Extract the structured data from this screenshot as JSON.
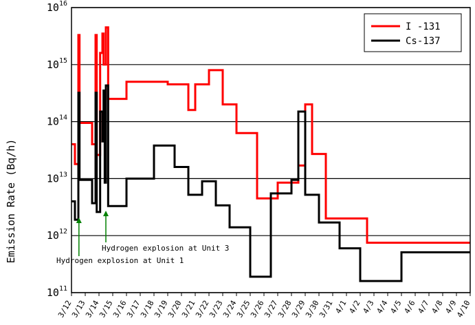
{
  "chart_data": {
    "type": "line",
    "title": "",
    "ylabel": "Emission Rate (Bq/h)",
    "xlabel": "",
    "y_scale": "log",
    "ylim": [
      100000000000.0,
      1e+16
    ],
    "y_ticks": [
      {
        "base": "10",
        "exp": "11",
        "value": 100000000000.0
      },
      {
        "base": "10",
        "exp": "12",
        "value": 1000000000000.0
      },
      {
        "base": "10",
        "exp": "13",
        "value": 10000000000000.0
      },
      {
        "base": "10",
        "exp": "14",
        "value": 100000000000000.0
      },
      {
        "base": "10",
        "exp": "15",
        "value": 1000000000000000.0
      },
      {
        "base": "10",
        "exp": "16",
        "value": 1e+16
      }
    ],
    "x_range": [
      "3/12",
      "4/10"
    ],
    "x_ticks": [
      "3/12",
      "3/13",
      "3/14",
      "3/15",
      "3/16",
      "3/17",
      "3/18",
      "3/19",
      "3/20",
      "3/21",
      "3/22",
      "3/23",
      "3/24",
      "3/25",
      "3/26",
      "3/27",
      "3/28",
      "3/29",
      "3/30",
      "3/31",
      "4/1",
      "4/2",
      "4/3",
      "4/4",
      "4/5",
      "4/6",
      "4/7",
      "4/8",
      "4/9",
      "4/10"
    ],
    "grid": "horizontal",
    "legend_position": "top-right",
    "series": [
      {
        "name": "I -131",
        "color": "#ff0000",
        "step_values": [
          {
            "x": "3/12 0:00",
            "y": 40000000000000.0
          },
          {
            "x": "3/12 6:00",
            "y": 18000000000000.0
          },
          {
            "x": "3/12 12:00",
            "y": 3300000000000000.0
          },
          {
            "x": "3/12 14:00",
            "y": 95000000000000.0
          },
          {
            "x": "3/13 12:00",
            "y": 40000000000000.0
          },
          {
            "x": "3/13 18:00",
            "y": 3300000000000000.0
          },
          {
            "x": "3/13 20:00",
            "y": 26000000000000.0
          },
          {
            "x": "3/14 2:00",
            "y": 1600000000000000.0
          },
          {
            "x": "3/14 6:00",
            "y": 3500000000000000.0
          },
          {
            "x": "3/14 8:00",
            "y": 1000000000000000.0
          },
          {
            "x": "3/14 12:00",
            "y": 4500000000000000.0
          },
          {
            "x": "3/14 16:00",
            "y": 250000000000000.0
          },
          {
            "x": "3/16 0:00",
            "y": 500000000000000.0
          },
          {
            "x": "3/19 0:00",
            "y": 450000000000000.0
          },
          {
            "x": "3/20 12:00",
            "y": 160000000000000.0
          },
          {
            "x": "3/21 0:00",
            "y": 450000000000000.0
          },
          {
            "x": "3/22 0:00",
            "y": 800000000000000.0
          },
          {
            "x": "3/23 0:00",
            "y": 200000000000000.0
          },
          {
            "x": "3/24 0:00",
            "y": 63000000000000.0
          },
          {
            "x": "3/25 12:00",
            "y": 4500000000000.0
          },
          {
            "x": "3/27 0:00",
            "y": 8500000000000.0
          },
          {
            "x": "3/28 12:00",
            "y": 17000000000000.0
          },
          {
            "x": "3/29 0:00",
            "y": 200000000000000.0
          },
          {
            "x": "3/29 12:00",
            "y": 27000000000000.0
          },
          {
            "x": "3/30 12:00",
            "y": 2000000000000.0
          },
          {
            "x": "4/2 12:00",
            "y": 750000000000.0
          },
          {
            "x": "4/10 0:00",
            "y": 750000000000.0
          }
        ]
      },
      {
        "name": "Cs-137",
        "color": "#000000",
        "step_values": [
          {
            "x": "3/12 0:00",
            "y": 4000000000000.0
          },
          {
            "x": "3/12 6:00",
            "y": 1900000000000.0
          },
          {
            "x": "3/12 12:00",
            "y": 320000000000000.0
          },
          {
            "x": "3/12 14:00",
            "y": 9500000000000.0
          },
          {
            "x": "3/13 12:00",
            "y": 3700000000000.0
          },
          {
            "x": "3/13 18:00",
            "y": 320000000000000.0
          },
          {
            "x": "3/13 20:00",
            "y": 2600000000000.0
          },
          {
            "x": "3/14 2:00",
            "y": 150000000000000.0
          },
          {
            "x": "3/14 6:00",
            "y": 45000000000000.0
          },
          {
            "x": "3/14 8:00",
            "y": 350000000000000.0
          },
          {
            "x": "3/14 10:00",
            "y": 8500000000000.0
          },
          {
            "x": "3/14 12:00",
            "y": 430000000000000.0
          },
          {
            "x": "3/14 16:00",
            "y": 3300000000000.0
          },
          {
            "x": "3/16 0:00",
            "y": 10000000000000.0
          },
          {
            "x": "3/18 0:00",
            "y": 38000000000000.0
          },
          {
            "x": "3/19 12:00",
            "y": 16000000000000.0
          },
          {
            "x": "3/20 12:00",
            "y": 5200000000000.0
          },
          {
            "x": "3/21 12:00",
            "y": 9000000000000.0
          },
          {
            "x": "3/22 12:00",
            "y": 3400000000000.0
          },
          {
            "x": "3/23 12:00",
            "y": 1400000000000.0
          },
          {
            "x": "3/25 0:00",
            "y": 190000000000.0
          },
          {
            "x": "3/26 12:00",
            "y": 5500000000000.0
          },
          {
            "x": "3/28 0:00",
            "y": 9500000000000.0
          },
          {
            "x": "3/28 12:00",
            "y": 150000000000000.0
          },
          {
            "x": "3/29 0:00",
            "y": 5200000000000.0
          },
          {
            "x": "3/30 0:00",
            "y": 1700000000000.0
          },
          {
            "x": "3/31 12:00",
            "y": 600000000000.0
          },
          {
            "x": "4/2 0:00",
            "y": 160000000000.0
          },
          {
            "x": "4/5 0:00",
            "y": 510000000000.0
          },
          {
            "x": "4/10 0:00",
            "y": 510000000000.0
          }
        ]
      }
    ],
    "annotations": [
      {
        "text": "Hydrogen explosion at Unit 3",
        "x": "3/14 12:00",
        "color": "#008000"
      },
      {
        "text": "Hydrogen explosion at Unit 1",
        "x": "3/12 13:00",
        "color": "#008000"
      }
    ]
  }
}
